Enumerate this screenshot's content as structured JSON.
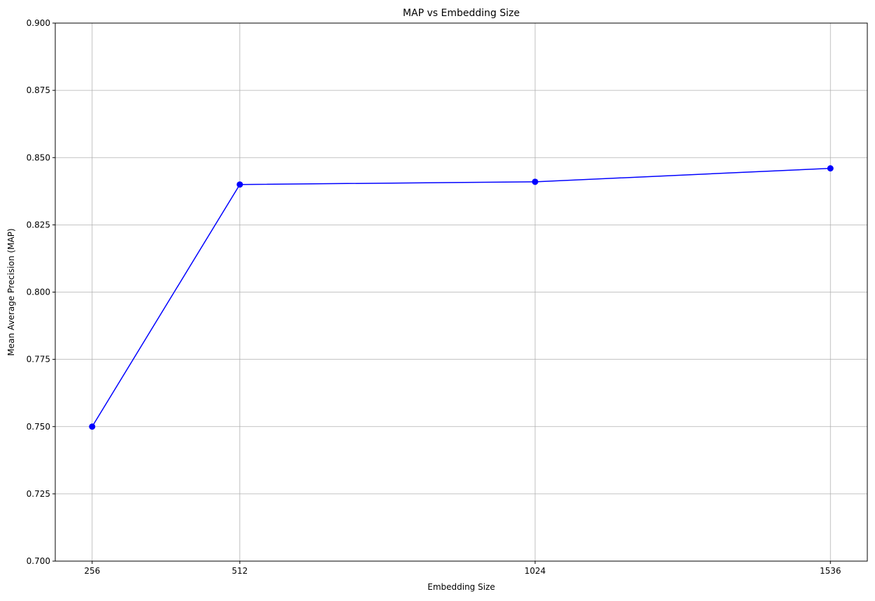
{
  "chart_data": {
    "type": "line",
    "title": "MAP vs Embedding Size",
    "xlabel": "Embedding Size",
    "ylabel": "Mean Average Precision (MAP)",
    "x": [
      256,
      512,
      1024,
      1536
    ],
    "y": [
      0.75,
      0.84,
      0.841,
      0.846
    ],
    "xticks": [
      "256",
      "512",
      "1024",
      "1536"
    ],
    "yticks": [
      "0.700",
      "0.725",
      "0.750",
      "0.775",
      "0.800",
      "0.825",
      "0.850",
      "0.875",
      "0.900"
    ],
    "xlim": [
      192,
      1600
    ],
    "ylim": [
      0.7,
      0.9
    ],
    "grid": true,
    "marker": "circle",
    "color": "#0000ff"
  }
}
